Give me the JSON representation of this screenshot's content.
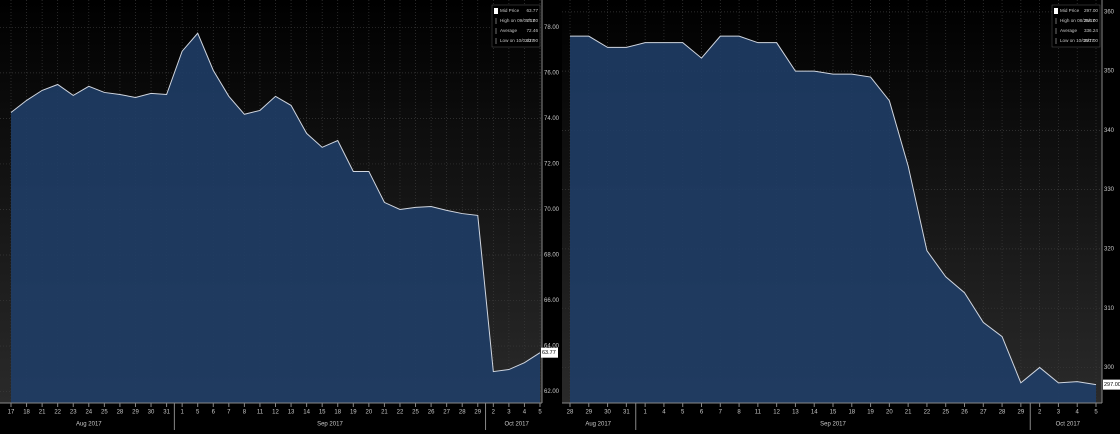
{
  "chart_data": [
    {
      "type": "area",
      "categories": [
        "17",
        "18",
        "21",
        "22",
        "23",
        "24",
        "25",
        "28",
        "29",
        "30",
        "31",
        "1",
        "5",
        "6",
        "7",
        "8",
        "11",
        "12",
        "13",
        "14",
        "15",
        "18",
        "19",
        "20",
        "21",
        "22",
        "25",
        "26",
        "27",
        "28",
        "29",
        "2",
        "3",
        "4",
        "5"
      ],
      "month_labels": [
        "Aug 2017",
        "Sep 2017",
        "Oct 2017"
      ],
      "values": [
        74.26,
        74.79,
        75.23,
        75.49,
        75.01,
        75.41,
        75.14,
        75.05,
        74.92,
        75.1,
        75.05,
        76.95,
        77.74,
        76.11,
        74.97,
        74.18,
        74.35,
        74.97,
        74.57,
        73.34,
        72.73,
        73.03,
        71.67,
        71.67,
        70.31,
        70.0,
        70.09,
        70.13,
        69.96,
        69.82,
        69.74,
        62.88,
        62.97,
        63.27,
        63.71
      ],
      "color": "#1f3d66",
      "line_color": "#d0d6e0",
      "ylim": [
        61.5,
        79.2
      ],
      "yticks": [
        {
          "value": 62,
          "label": "62.00"
        },
        {
          "value": 64,
          "label": "64.00"
        },
        {
          "value": 66,
          "label": "66.00"
        },
        {
          "value": 68,
          "label": "68.00"
        },
        {
          "value": 70,
          "label": "70.00"
        },
        {
          "value": 72,
          "label": "72.00"
        },
        {
          "value": 74,
          "label": "74.00"
        },
        {
          "value": 76,
          "label": "76.00"
        },
        {
          "value": 78,
          "label": "78.00"
        }
      ],
      "grid": true,
      "legend": [
        {
          "label": "Mid Price",
          "value": "63.77"
        },
        {
          "label": "High on 09/05/17",
          "value": "77.80"
        },
        {
          "label": "Average",
          "value": "72.46"
        },
        {
          "label": "Low on 10/02/17",
          "value": "62.90"
        }
      ]
    },
    {
      "type": "area",
      "categories": [
        "28",
        "29",
        "30",
        "31",
        "1",
        "4",
        "5",
        "6",
        "7",
        "8",
        "11",
        "12",
        "13",
        "14",
        "15",
        "18",
        "19",
        "20",
        "21",
        "22",
        "25",
        "26",
        "27",
        "28",
        "29",
        "2",
        "3",
        "4",
        "5"
      ],
      "month_labels": [
        "Aug 2017",
        "Sep 2017",
        "Oct 2017"
      ],
      "values": [
        355.9,
        355.9,
        354.0,
        354.0,
        354.8,
        354.8,
        354.8,
        352.2,
        355.9,
        355.9,
        354.8,
        354.8,
        350.0,
        350.0,
        349.5,
        349.5,
        349.0,
        345.0,
        334.0,
        319.7,
        315.3,
        312.6,
        307.6,
        305.2,
        297.4,
        300.0,
        297.4,
        297.6,
        297.1
      ],
      "color": "#1f3d66",
      "line_color": "#d0d6e0",
      "ylim": [
        294,
        362
      ],
      "yticks": [
        300,
        310,
        320,
        330,
        340,
        350,
        360
      ],
      "grid": true,
      "legend": [
        {
          "label": "Mid Price",
          "value": "297.00"
        },
        {
          "label": "High on 08/25/17",
          "value": "356.00"
        },
        {
          "label": "Average",
          "value": "336.24"
        },
        {
          "label": "Low on 10/05/17",
          "value": "297.00"
        }
      ]
    }
  ]
}
